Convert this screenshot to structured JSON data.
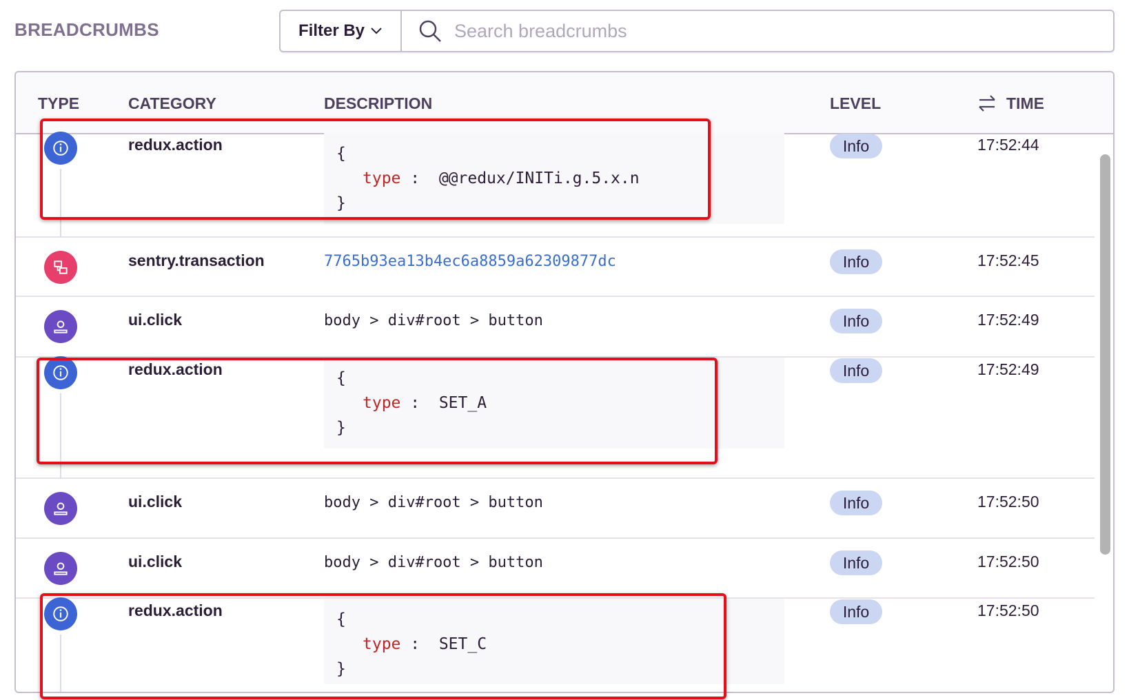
{
  "header": {
    "title": "BREADCRUMBS",
    "filter_label": "Filter By",
    "search_placeholder": "Search breadcrumbs"
  },
  "columns": {
    "type": "TYPE",
    "category": "CATEGORY",
    "description": "DESCRIPTION",
    "level": "LEVEL",
    "time": "TIME"
  },
  "colors": {
    "info_icon": "#3c64d4",
    "transaction_icon": "#e83e6c",
    "user_icon": "#6a4bc4",
    "highlight": "#e3101c",
    "badge": "#cbd6f3"
  },
  "rows": [
    {
      "icon": "info-icon",
      "category": "redux.action",
      "code_key": "type",
      "code_sep": ":",
      "code_value": "@@redux/INITi.g.5.x.n",
      "open": "{",
      "close": "}",
      "level": "Info",
      "time": "17:52:44"
    },
    {
      "icon": "transaction-icon",
      "category": "sentry.transaction",
      "description": "7765b93ea13b4ec6a8859a62309877dc",
      "level": "Info",
      "time": "17:52:45"
    },
    {
      "icon": "user-icon",
      "category": "ui.click",
      "description": "body > div#root > button",
      "level": "Info",
      "time": "17:52:49"
    },
    {
      "icon": "info-icon",
      "category": "redux.action",
      "code_key": "type",
      "code_sep": ":",
      "code_value": "SET_A",
      "open": "{",
      "close": "}",
      "level": "Info",
      "time": "17:52:49"
    },
    {
      "icon": "user-icon",
      "category": "ui.click",
      "description": "body > div#root > button",
      "level": "Info",
      "time": "17:52:50"
    },
    {
      "icon": "user-icon",
      "category": "ui.click",
      "description": "body > div#root > button",
      "level": "Info",
      "time": "17:52:50"
    },
    {
      "icon": "info-icon",
      "category": "redux.action",
      "code_key": "type",
      "code_sep": ":",
      "code_value": "SET_C",
      "open": "{",
      "close": "}",
      "level": "Info",
      "time": "17:52:50"
    }
  ]
}
